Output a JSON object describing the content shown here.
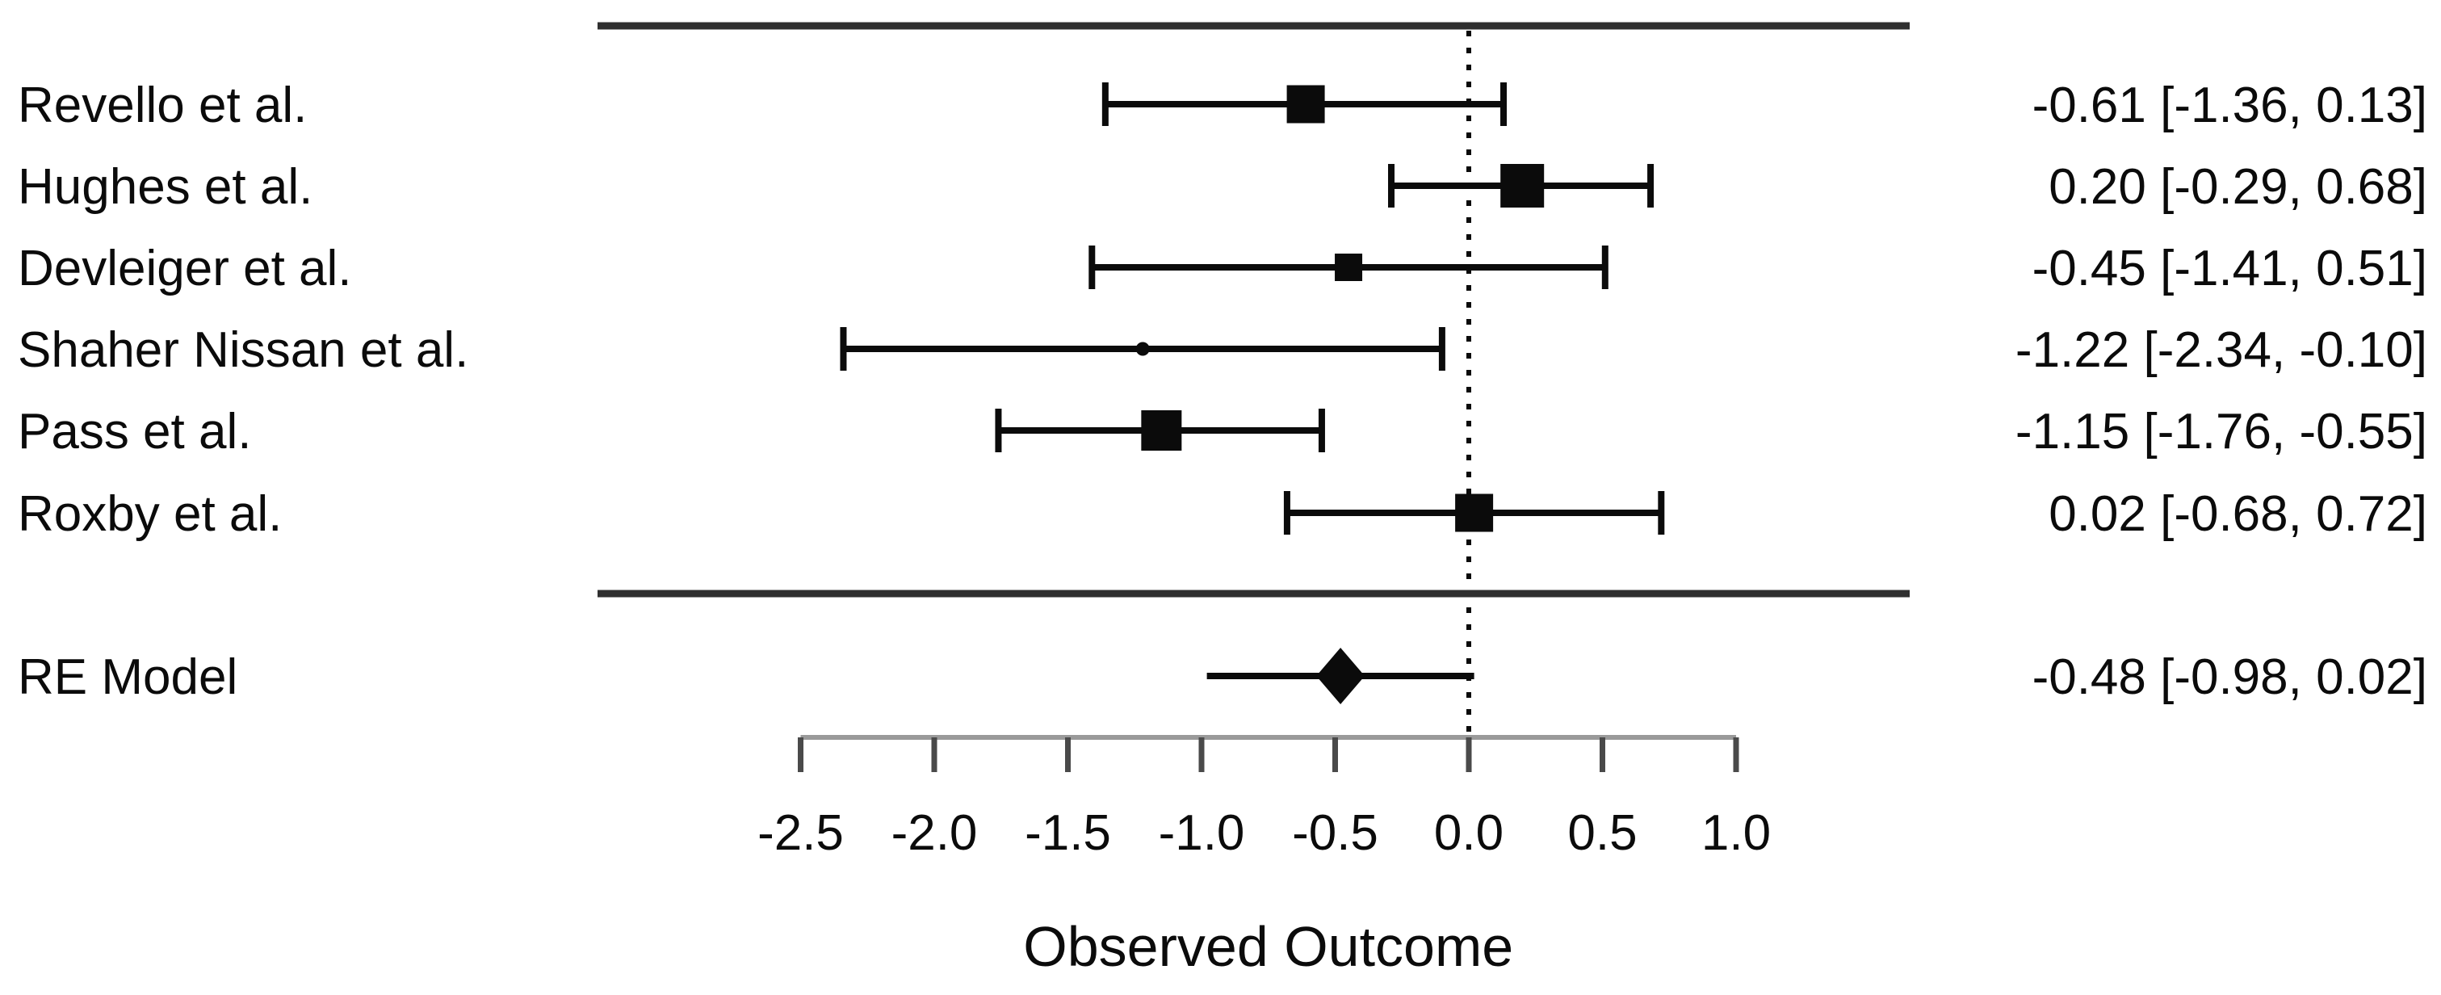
{
  "chart_data": {
    "type": "scatter",
    "subtype": "forest-plot",
    "title": "",
    "xlabel": "Observed Outcome",
    "xlim": [
      -2.5,
      1.0
    ],
    "x_ticks": [
      -2.5,
      -2.0,
      -1.5,
      -1.0,
      -0.5,
      0.0,
      0.5,
      1.0
    ],
    "x_tick_labels": [
      "-2.5",
      "-2.0",
      "-1.5",
      "-1.0",
      "-0.5",
      "0.0",
      "0.5",
      "1.0"
    ],
    "reference_line_x": 0.0,
    "grid": false,
    "legend": false,
    "studies": [
      {
        "label": "Revello et al.",
        "estimate": -0.61,
        "ci_lower": -1.36,
        "ci_upper": 0.13,
        "annotation": "-0.61 [-1.36, 0.13]",
        "marker": "square",
        "marker_size": 47
      },
      {
        "label": "Hughes et al.",
        "estimate": 0.2,
        "ci_lower": -0.29,
        "ci_upper": 0.68,
        "annotation": "0.20 [-0.29, 0.68]",
        "marker": "square",
        "marker_size": 54
      },
      {
        "label": "Devleiger et al.",
        "estimate": -0.45,
        "ci_lower": -1.41,
        "ci_upper": 0.51,
        "annotation": "-0.45 [-1.41, 0.51]",
        "marker": "square",
        "marker_size": 34
      },
      {
        "label": "Shaher Nissan et al.",
        "estimate": -1.22,
        "ci_lower": -2.34,
        "ci_upper": -0.1,
        "annotation": "-1.22 [-2.34, -0.10]",
        "marker": "dot",
        "marker_size": 17
      },
      {
        "label": "Pass et al.",
        "estimate": -1.15,
        "ci_lower": -1.76,
        "ci_upper": -0.55,
        "annotation": "-1.15 [-1.76, -0.55]",
        "marker": "square",
        "marker_size": 50
      },
      {
        "label": "Roxby et al.",
        "estimate": 0.02,
        "ci_lower": -0.68,
        "ci_upper": 0.72,
        "annotation": "0.02 [-0.68, 0.72]",
        "marker": "square",
        "marker_size": 47
      }
    ],
    "summary": {
      "label": "RE Model",
      "estimate": -0.48,
      "ci_lower": -0.98,
      "ci_upper": 0.02,
      "annotation": "-0.48 [-0.98, 0.02]",
      "marker": "diamond"
    }
  },
  "colors": {
    "foreground": "#0b0b0b",
    "rule": "#2f2f2f",
    "axis_line": "#9a9a9a",
    "axis_tick": "#4a4a4a",
    "background": "#ffffff"
  }
}
